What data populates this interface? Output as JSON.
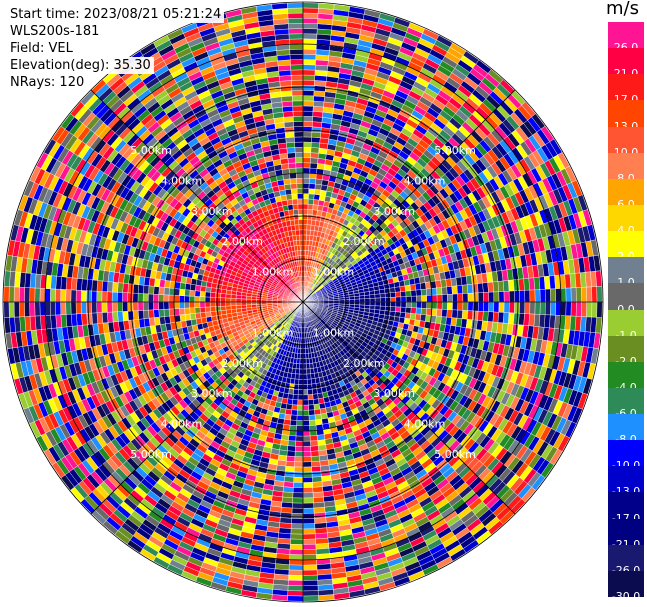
{
  "header": {
    "start_time": "Start time: 2023/08/21 05:21:24",
    "site": "WLS200s-181",
    "field": "Field: VEL",
    "elevation": "Elevation(deg): 35.30",
    "nrays": "NRays: 120"
  },
  "colorbar": {
    "unit": "m/s",
    "bins": [
      {
        "label": "26.0",
        "color": "#ff1493"
      },
      {
        "label": "21.0",
        "color": "#ff0044"
      },
      {
        "label": "17.0",
        "color": "#ff1a1a"
      },
      {
        "label": "13.0",
        "color": "#ff4500"
      },
      {
        "label": "10.0",
        "color": "#ff5533"
      },
      {
        "label": "8.0",
        "color": "#ff7f50"
      },
      {
        "label": "6.0",
        "color": "#ffa500"
      },
      {
        "label": "4.0",
        "color": "#ffd700"
      },
      {
        "label": "2.0",
        "color": "#ffff00"
      },
      {
        "label": "1.0",
        "color": "#708090"
      },
      {
        "label": "0.0",
        "color": "#696969"
      },
      {
        "label": "-1.0",
        "color": "#9acd32"
      },
      {
        "label": "-2.0",
        "color": "#6b8e23"
      },
      {
        "label": "-4.0",
        "color": "#228b22"
      },
      {
        "label": "-6.0",
        "color": "#2e8b57"
      },
      {
        "label": "-8.0",
        "color": "#1e90ff"
      },
      {
        "label": "-10.0",
        "color": "#0000ff"
      },
      {
        "label": "-13.0",
        "color": "#0000cd"
      },
      {
        "label": "-17.0",
        "color": "#00008b"
      },
      {
        "label": "-21.0",
        "color": "#000080"
      },
      {
        "label": "-26.0",
        "color": "#191970"
      },
      {
        "label": "-30.0",
        "color": "#0b0b50"
      }
    ]
  },
  "chart_data": {
    "type": "heatmap",
    "projection": "polar",
    "field": "VEL",
    "units": "m/s",
    "nrays": 120,
    "range_km": [
      0,
      7
    ],
    "ring_labels": [
      "1.00km",
      "2.00km",
      "3.00km",
      "4.00km",
      "5.00km"
    ],
    "pattern": {
      "positive_sector_azimuth_deg": [
        225,
        35
      ],
      "negative_sector_azimuth_deg": [
        45,
        215
      ],
      "zero_line_azimuths_deg": [
        40,
        220
      ],
      "coherent_range_km": 2.4,
      "noise_beyond_km": 2.4
    }
  }
}
